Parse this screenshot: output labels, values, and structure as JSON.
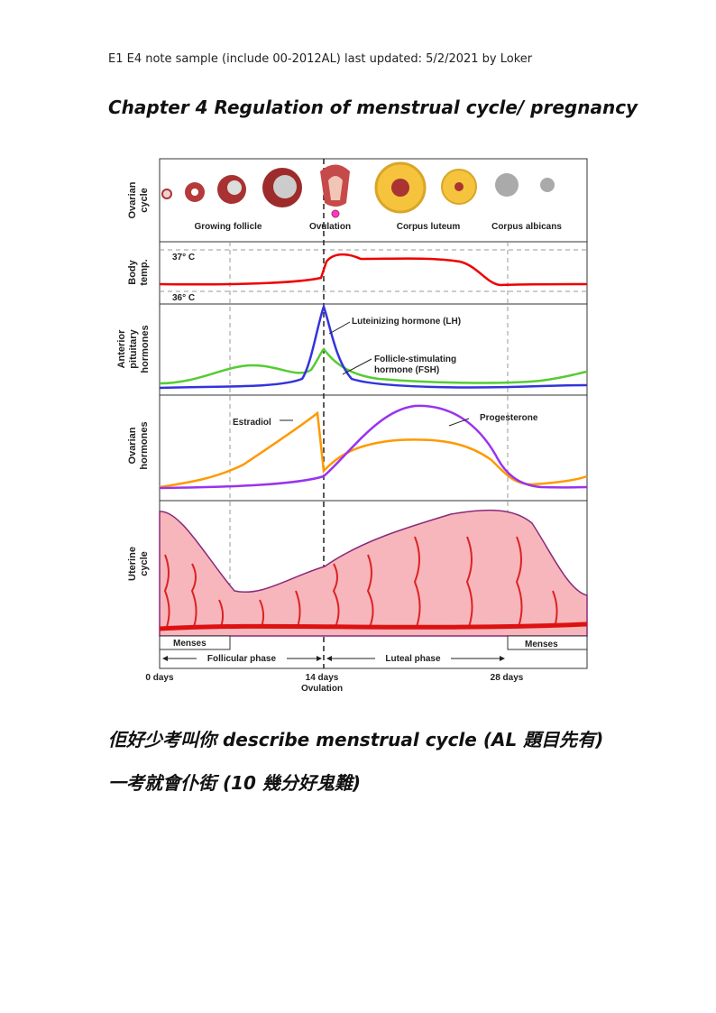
{
  "header": {
    "note": "E1 E4 note sample (include 00-2012AL) last updated: 5/2/2021 by Loker"
  },
  "title": "Chapter 4 Regulation of menstrual cycle/ pregnancy",
  "figure": {
    "panels": [
      [
        "Ovarian",
        "cycle"
      ],
      [
        "Body",
        "temp."
      ],
      [
        "Anterior",
        "pituitary",
        "hormones"
      ],
      [
        "Ovarian",
        "hormones"
      ],
      [
        "Uterine",
        "cycle"
      ]
    ],
    "stages": [
      "Growing follicle",
      "Ovulation",
      "Corpus luteum",
      "Corpus albicans"
    ],
    "temps": [
      "37° C",
      "36° C"
    ],
    "lh": "Luteinizing hormone (LH)",
    "fsh": [
      "Follicle-stimulating",
      "hormone (FSH)"
    ],
    "estradiol": "Estradiol",
    "progesterone": "Progesterone",
    "menses": [
      "Menses",
      "Menses"
    ],
    "phases": [
      "Follicular phase",
      "Luteal phase"
    ],
    "days": [
      "0 days",
      "14 days",
      "28 days"
    ],
    "ovulation_day": "Ovulation"
  },
  "body": [
    "佢好少考叫你 describe menstrual cycle (AL 題目先有)",
    "一考就會仆街 (10 幾分好鬼難)"
  ]
}
